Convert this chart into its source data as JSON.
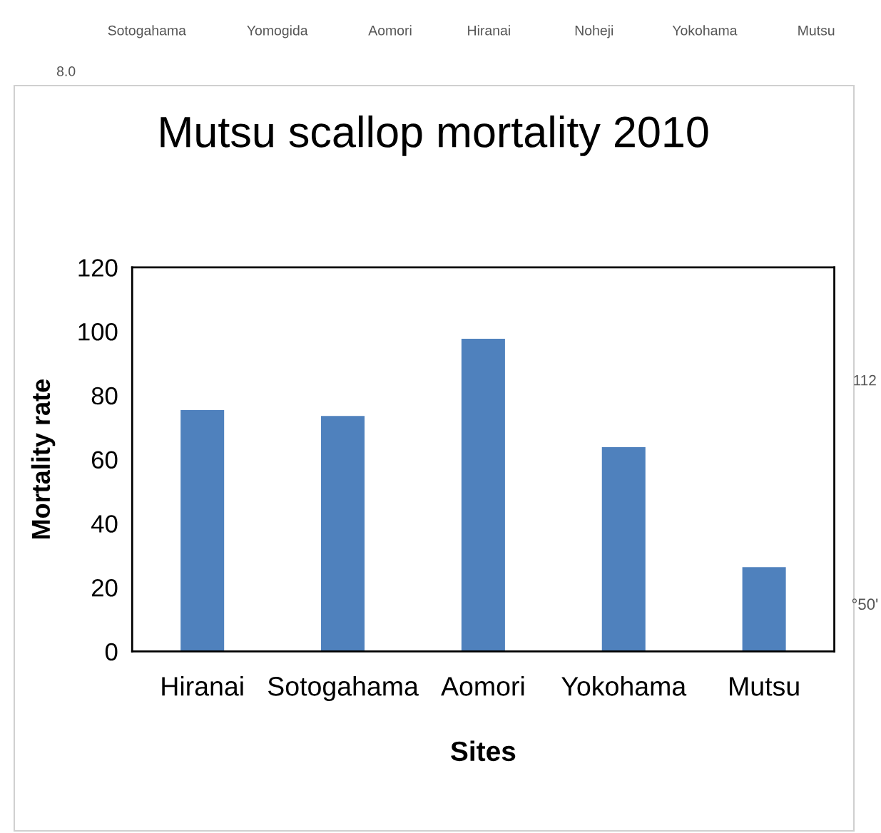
{
  "chart_data": {
    "type": "bar",
    "title": "Mutsu scallop mortality 2010",
    "xlabel": "Sites",
    "ylabel": "Mortality rate",
    "categories": [
      "Hiranai",
      "Sotogahama",
      "Aomori",
      "Yokohama",
      "Mutsu"
    ],
    "values": [
      75.4,
      73.6,
      97.7,
      63.8,
      26.3
    ],
    "color": "#4f81bd",
    "ylim": [
      0,
      120
    ],
    "yticks": [
      0,
      20,
      40,
      60,
      80,
      100,
      120
    ],
    "grid": false,
    "legend": false,
    "annotations": [
      "Sotogahama",
      "Yomogida",
      "Aomori",
      "Hiranai",
      "Noheji",
      "Yokohama",
      "Mutsu",
      "8.0",
      "112",
      "°50'"
    ]
  }
}
